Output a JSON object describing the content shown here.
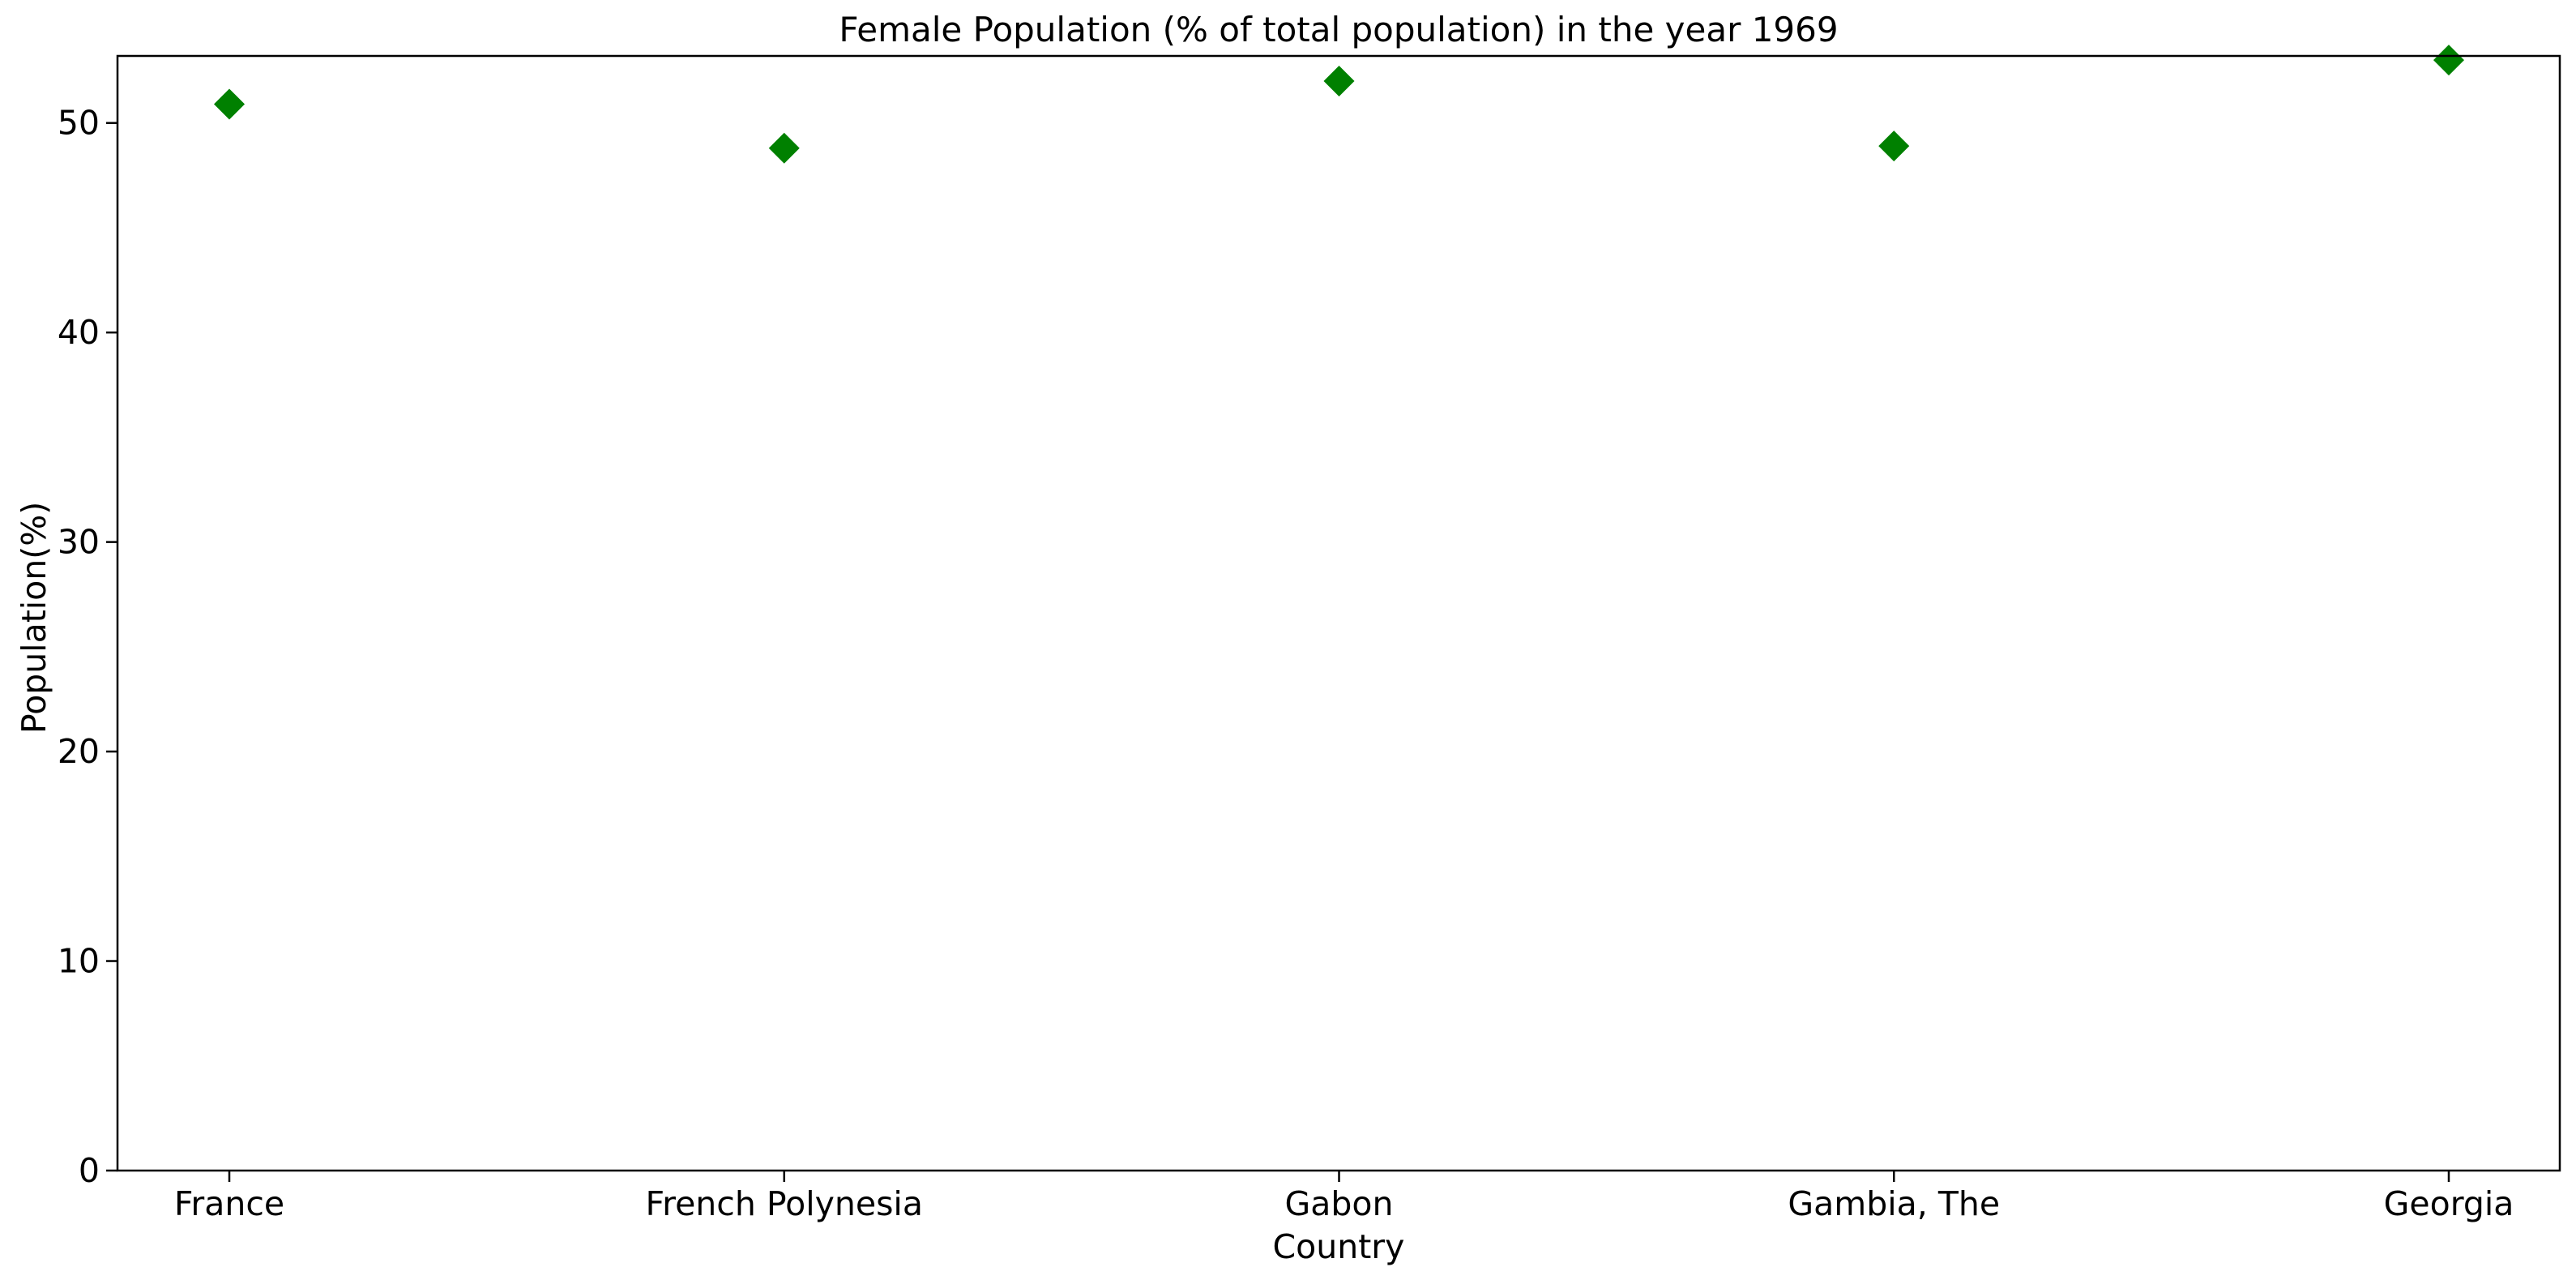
{
  "chart_data": {
    "type": "scatter",
    "title": "Female Population (% of total population) in the year 1969",
    "xlabel": "Country",
    "ylabel": "Population(%)",
    "categories": [
      "France",
      "French Polynesia",
      "Gabon",
      "Gambia, The",
      "Georgia"
    ],
    "values": [
      50.9,
      48.8,
      52.0,
      48.9,
      53.0
    ],
    "ylim": [
      0,
      53.2
    ],
    "yticks": [
      0,
      10,
      20,
      30,
      40,
      50
    ],
    "marker": "diamond",
    "marker_color": "#008000",
    "grid": false,
    "legend": "none"
  }
}
